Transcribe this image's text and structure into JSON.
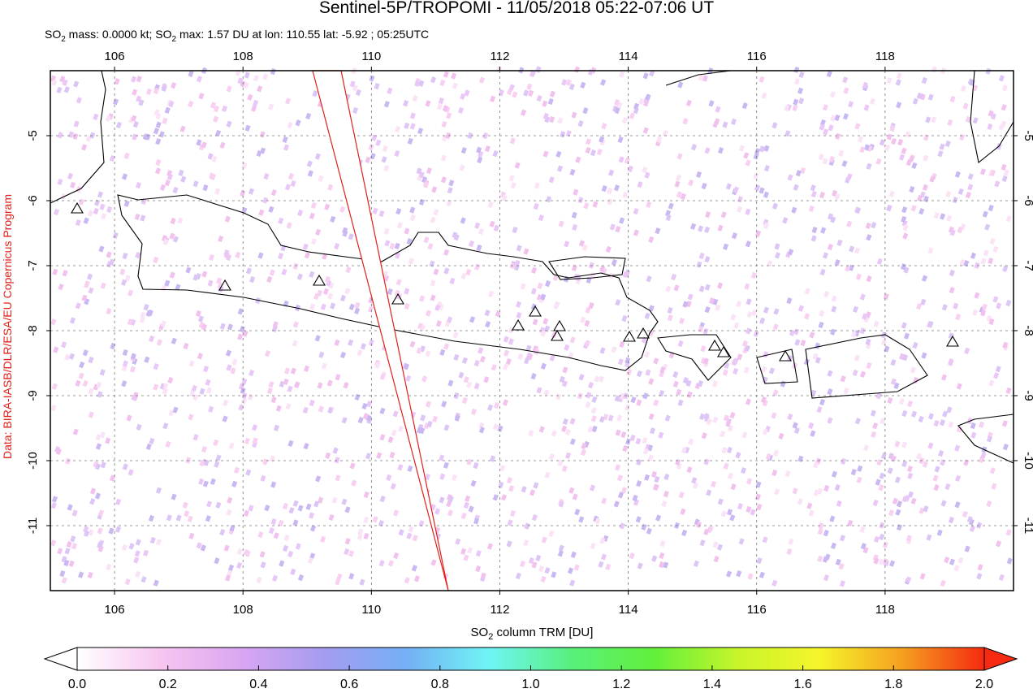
{
  "title": "Sentinel-5P/TROPOMI - 11/05/2018 05:22-07:06 UT",
  "subtitle": [
    "SO",
    "2",
    " mass: 0.0000 kt; SO",
    "2",
    " max: 1.57 DU at lon: 110.55 lat: -5.92 ; 05:25UTC"
  ],
  "credit": "Data: BIRA-IASB/DLR/ESA/EU Copernicus Program",
  "map": {
    "lonlim": [
      105,
      120
    ],
    "latlim": [
      -12,
      -4
    ],
    "xticks": [
      106,
      108,
      110,
      112,
      114,
      116,
      118
    ],
    "yticks": [
      -5,
      -6,
      -7,
      -8,
      -9,
      -10,
      -11
    ]
  },
  "colorbar": {
    "label": [
      "SO",
      "2",
      " column TRM [DU]"
    ],
    "lim": [
      0,
      2
    ],
    "colors": [
      "#ffffff",
      "#f7c6f0",
      "#d9a6f2",
      "#a49cf0",
      "#74b0f5",
      "#6ff5f5",
      "#58f07c",
      "#62f03a",
      "#c7f52a",
      "#f5f52a",
      "#f5a020",
      "#f52a10"
    ],
    "ticks": [
      {
        "value": 0,
        "label": "0.0"
      },
      {
        "value": 0.2,
        "label": "0.2"
      },
      {
        "value": 0.4,
        "label": "0.4"
      },
      {
        "value": 0.6,
        "label": "0.6"
      },
      {
        "value": 0.8,
        "label": "0.8"
      },
      {
        "value": 1,
        "label": "1.0"
      },
      {
        "value": 1.2,
        "label": "1.2"
      },
      {
        "value": 1.4,
        "label": "1.4"
      },
      {
        "value": 1.6,
        "label": "1.6"
      },
      {
        "value": 1.8,
        "label": "1.8"
      },
      {
        "value": 2,
        "label": "2.0"
      }
    ]
  }
}
